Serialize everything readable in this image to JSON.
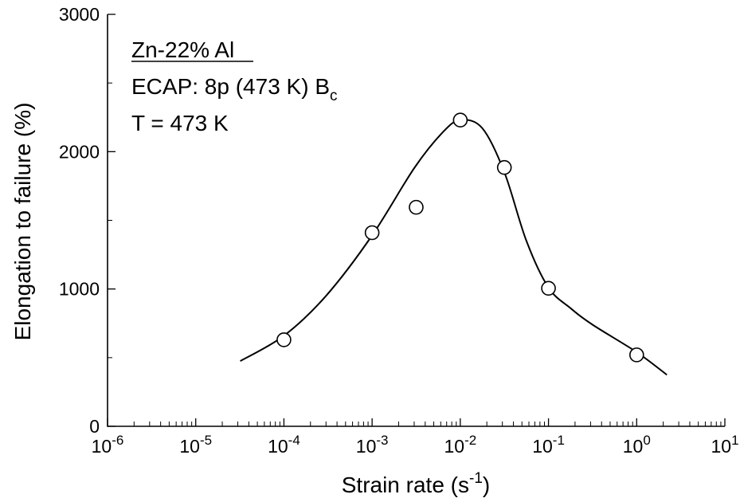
{
  "chart_data": {
    "type": "scatter",
    "title": "",
    "xlabel": "Strain rate (s",
    "xlabel_sup": "-1",
    "xlabel_tail": ")",
    "ylabel": "Elongation to failure (%)",
    "x_scale": "log",
    "xlim": [
      1e-06,
      10
    ],
    "ylim": [
      0,
      3000
    ],
    "x_ticks": [
      {
        "value": 1e-06,
        "base": "10",
        "exp": "-6"
      },
      {
        "value": 1e-05,
        "base": "10",
        "exp": "-5"
      },
      {
        "value": 0.0001,
        "base": "10",
        "exp": "-4"
      },
      {
        "value": 0.001,
        "base": "10",
        "exp": "-3"
      },
      {
        "value": 0.01,
        "base": "10",
        "exp": "-2"
      },
      {
        "value": 0.1,
        "base": "10",
        "exp": "-1"
      },
      {
        "value": 1,
        "base": "10",
        "exp": "0"
      },
      {
        "value": 10,
        "base": "10",
        "exp": "1"
      }
    ],
    "y_ticks": [
      {
        "value": 0,
        "label": "0"
      },
      {
        "value": 1000,
        "label": "1000"
      },
      {
        "value": 2000,
        "label": "2000"
      },
      {
        "value": 3000,
        "label": "3000"
      }
    ],
    "grid": false,
    "legend": "none",
    "annotations": [
      {
        "text": "Zn-22% Al",
        "underline": true
      },
      {
        "text": "ECAP: 8p (473 K) B",
        "sub": "c"
      },
      {
        "text": "T = 473 K"
      }
    ],
    "series": [
      {
        "type": "scatter",
        "marker": "open-circle",
        "points": [
          {
            "x": 0.0001,
            "y": 630
          },
          {
            "x": 0.001,
            "y": 1410
          },
          {
            "x": 0.00316,
            "y": 1595
          },
          {
            "x": 0.01,
            "y": 2230
          },
          {
            "x": 0.0316,
            "y": 1885
          },
          {
            "x": 0.1,
            "y": 1005
          },
          {
            "x": 1,
            "y": 520
          }
        ]
      },
      {
        "type": "line",
        "style": "smooth",
        "points": [
          {
            "x": 3.2e-05,
            "y": 475
          },
          {
            "x": 0.0001,
            "y": 660
          },
          {
            "x": 0.0003,
            "y": 950
          },
          {
            "x": 0.001,
            "y": 1390
          },
          {
            "x": 0.003,
            "y": 1880
          },
          {
            "x": 0.0063,
            "y": 2140
          },
          {
            "x": 0.01,
            "y": 2230
          },
          {
            "x": 0.0178,
            "y": 2170
          },
          {
            "x": 0.0316,
            "y": 1850
          },
          {
            "x": 0.0562,
            "y": 1350
          },
          {
            "x": 0.1,
            "y": 1010
          },
          {
            "x": 0.178,
            "y": 860
          },
          {
            "x": 0.316,
            "y": 740
          },
          {
            "x": 1,
            "y": 540
          },
          {
            "x": 2.2,
            "y": 375
          }
        ]
      }
    ]
  }
}
